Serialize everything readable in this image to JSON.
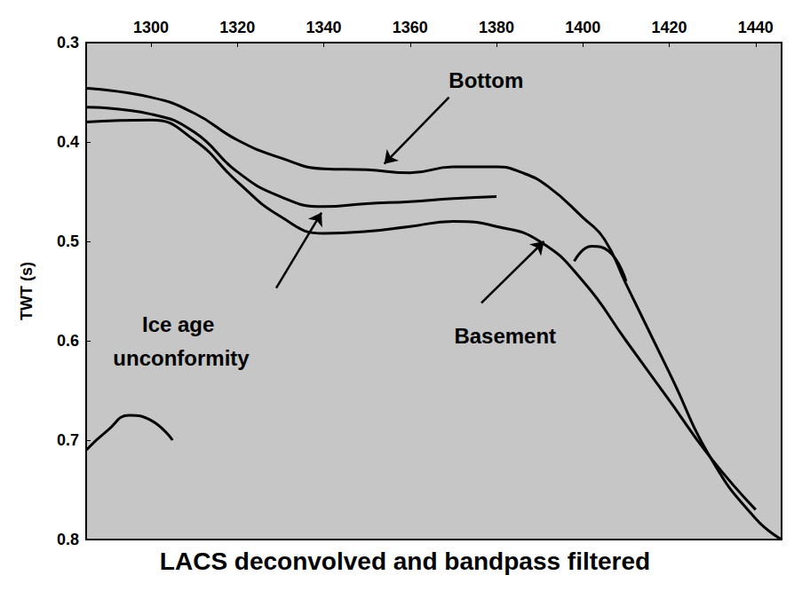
{
  "chart_data": {
    "type": "line",
    "title": "LACS deconvolved and bandpass filtered",
    "y_label": "TWT (s)",
    "xlim": [
      1285,
      1446
    ],
    "xticks": [
      1300,
      1320,
      1340,
      1360,
      1380,
      1400,
      1420,
      1440
    ],
    "ylim": [
      0.3,
      0.8
    ],
    "yticks": [
      0.3,
      0.4,
      0.5,
      0.6,
      0.7,
      0.8
    ],
    "grid": false,
    "series": [
      {
        "color": "#000000",
        "x": [
          1285,
          1300,
          1310,
          1320,
          1330,
          1340,
          1350,
          1360,
          1370,
          1380,
          1386,
          1392,
          1400,
          1405,
          1410,
          1420,
          1430,
          1440,
          1446
        ],
        "values": [
          0.346,
          0.355,
          0.371,
          0.398,
          0.416,
          0.427,
          0.428,
          0.431,
          0.425,
          0.425,
          0.431,
          0.445,
          0.476,
          0.498,
          0.543,
          0.632,
          0.721,
          0.779,
          0.8
        ]
      },
      {
        "color": "#000000",
        "x": [
          1285,
          1300,
          1310,
          1320,
          1330,
          1340,
          1350,
          1360,
          1370,
          1380
        ],
        "values": [
          0.365,
          0.372,
          0.39,
          0.43,
          0.455,
          0.465,
          0.462,
          0.46,
          0.457,
          0.455
        ]
      },
      {
        "color": "#000000",
        "x": [
          1285,
          1300,
          1310,
          1320,
          1330,
          1340,
          1350,
          1360,
          1370,
          1380,
          1390,
          1400,
          1410,
          1420,
          1430,
          1440
        ],
        "values": [
          0.38,
          0.378,
          0.398,
          0.44,
          0.475,
          0.492,
          0.49,
          0.485,
          0.48,
          0.485,
          0.5,
          0.54,
          0.6,
          0.66,
          0.72,
          0.77
        ]
      },
      {
        "color": "#000000",
        "x": [
          1285,
          1290,
          1295,
          1300,
          1305
        ],
        "values": [
          0.71,
          0.69,
          0.675,
          0.68,
          0.7
        ]
      },
      {
        "color": "#000000",
        "x": [
          1398,
          1402,
          1406,
          1410
        ],
        "values": [
          0.52,
          0.505,
          0.51,
          0.54
        ]
      }
    ],
    "annotations": [
      {
        "text": "Bottom",
        "x": 1377.6,
        "y": 0.3375,
        "arrow_x": [
          1369,
          1354
        ],
        "arrow_y": [
          0.355,
          0.422
        ]
      },
      {
        "text": "Ice age unconformity",
        "x": 1307,
        "y": 0.6,
        "arrow_x": [
          1329,
          1339.5
        ],
        "arrow_y": [
          0.547,
          0.471
        ]
      },
      {
        "text": "Basement",
        "x": 1382,
        "y": 0.595,
        "arrow_x": [
          1376.5,
          1391
        ],
        "arrow_y": [
          0.562,
          0.5
        ]
      }
    ]
  }
}
